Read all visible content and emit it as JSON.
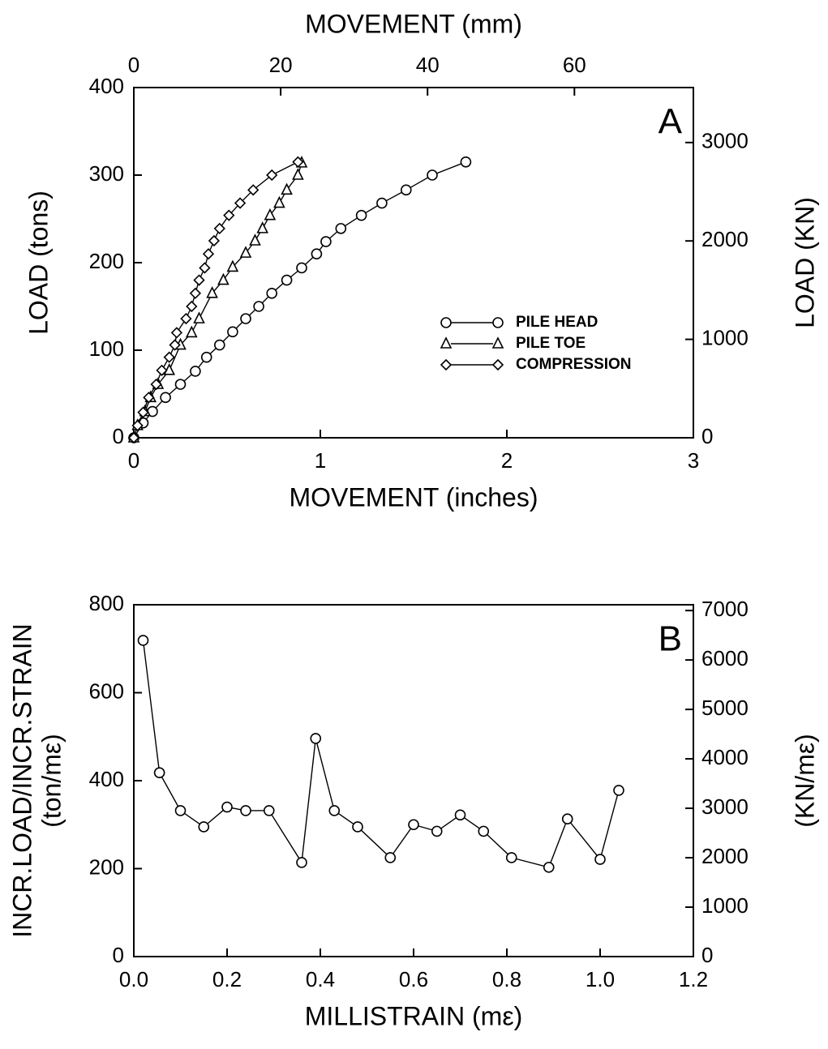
{
  "chart_data": [
    {
      "type": "line",
      "panel_label": "A",
      "x_label": "MOVEMENT (inches)",
      "x2_label": "MOVEMENT (mm)",
      "y_label": [
        "LOAD (tons)"
      ],
      "y2_label": "LOAD (KN)",
      "xlim": [
        0,
        3
      ],
      "xticks": [
        0,
        1,
        2,
        3
      ],
      "x2lim": [
        0,
        76.2
      ],
      "x2ticks": [
        0,
        20,
        40,
        60
      ],
      "ylim": [
        0,
        400
      ],
      "yticks": [
        0,
        100,
        200,
        300,
        400
      ],
      "y2lim": [
        0,
        3558.6
      ],
      "y2ticks": [
        0,
        1000,
        2000,
        3000
      ],
      "legend": "right",
      "series": [
        {
          "name": "PILE HEAD",
          "marker": "circle",
          "color": "#000000",
          "x": [
            0,
            0.05,
            0.1,
            0.17,
            0.25,
            0.33,
            0.39,
            0.46,
            0.53,
            0.6,
            0.67,
            0.74,
            0.82,
            0.9,
            0.98,
            1.03,
            1.11,
            1.22,
            1.33,
            1.46,
            1.6,
            1.78
          ],
          "values": [
            0,
            17,
            30,
            46,
            61,
            76,
            92,
            106,
            121,
            136,
            150,
            165,
            180,
            194,
            210,
            224,
            239,
            254,
            268,
            283,
            300,
            315
          ]
        },
        {
          "name": "PILE TOE",
          "marker": "triangle",
          "color": "#000000",
          "x": [
            0,
            0.02,
            0.06,
            0.09,
            0.13,
            0.19,
            0.25,
            0.31,
            0.35,
            0.42,
            0.48,
            0.53,
            0.6,
            0.65,
            0.69,
            0.73,
            0.78,
            0.82,
            0.88,
            0.9
          ],
          "values": [
            0,
            14,
            30,
            46,
            61,
            77,
            106,
            120,
            136,
            165,
            180,
            195,
            211,
            225,
            239,
            254,
            268,
            283,
            300,
            314
          ]
        },
        {
          "name": "COMPRESSION",
          "marker": "diamond",
          "color": "#000000",
          "x": [
            0,
            0.02,
            0.05,
            0.08,
            0.12,
            0.15,
            0.19,
            0.22,
            0.23,
            0.28,
            0.31,
            0.33,
            0.35,
            0.38,
            0.4,
            0.43,
            0.46,
            0.51,
            0.57,
            0.64,
            0.74,
            0.88
          ],
          "values": [
            0,
            14,
            29,
            46,
            61,
            77,
            92,
            106,
            120,
            136,
            150,
            165,
            180,
            194,
            210,
            225,
            239,
            254,
            268,
            283,
            300,
            315
          ]
        }
      ]
    },
    {
      "type": "line",
      "panel_label": "B",
      "x_label": "MILLISTRAIN (mε)",
      "y_label": [
        "INCR.LOAD/INCR.STRAIN",
        "(ton/mε)"
      ],
      "y2_label": "(KN/mε)",
      "xlim": [
        0,
        1.2
      ],
      "xticks": [
        {
          "value": 0,
          "label": "0.0"
        },
        {
          "value": 0.2,
          "label": "0.2"
        },
        {
          "value": 0.4,
          "label": "0.4"
        },
        {
          "value": 0.6,
          "label": "0.6"
        },
        {
          "value": 0.8,
          "label": "0.8"
        },
        {
          "value": 1,
          "label": "1.0"
        },
        {
          "value": 1.2,
          "label": "1.2"
        }
      ],
      "ylim": [
        0,
        800
      ],
      "yticks": [
        0,
        200,
        400,
        600,
        800
      ],
      "y2lim": [
        0,
        7117
      ],
      "y2ticks": [
        0,
        1000,
        2000,
        3000,
        4000,
        5000,
        6000,
        7000
      ],
      "series": [
        {
          "marker": "circle",
          "color": "#000000",
          "x": [
            0.02,
            0.055,
            0.1,
            0.15,
            0.2,
            0.24,
            0.29,
            0.36,
            0.39,
            0.43,
            0.48,
            0.55,
            0.6,
            0.65,
            0.7,
            0.75,
            0.81,
            0.89,
            0.93,
            1.0,
            1.04
          ],
          "values": [
            719,
            418,
            332,
            295,
            340,
            332,
            332,
            214,
            496,
            332,
            295,
            225,
            300,
            285,
            322,
            285,
            225,
            203,
            313,
            221,
            378
          ]
        }
      ]
    }
  ]
}
